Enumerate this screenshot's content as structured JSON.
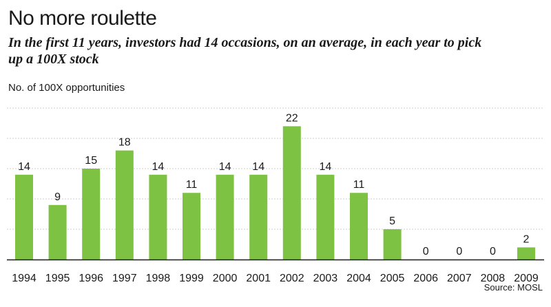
{
  "chart_data": {
    "type": "bar",
    "title": "No more roulette",
    "subtitle": "In the first 11 years, investors had 14 occasions, on an average, in each year to pick up a 100X stock",
    "ylabel": "No. of 100X opportunities",
    "xlabel": "",
    "source": "Source: MOSL",
    "categories": [
      "1994",
      "1995",
      "1996",
      "1997",
      "1998",
      "1999",
      "2000",
      "2001",
      "2002",
      "2003",
      "2004",
      "2005",
      "2006",
      "2007",
      "2008",
      "2009"
    ],
    "values": [
      14,
      9,
      15,
      18,
      14,
      11,
      14,
      14,
      22,
      14,
      11,
      5,
      0,
      0,
      0,
      2
    ],
    "data_labels": [
      "14",
      "9",
      "15",
      "18",
      "14",
      "11",
      "14",
      "14",
      "22",
      "14",
      "11",
      "5",
      "0",
      "0",
      "0",
      "2"
    ],
    "ylim": [
      0,
      25
    ],
    "grid": true,
    "bar_color": "#7dc242",
    "grid_color": "#cfcfcf",
    "axis_color": "#1a1a1a"
  }
}
